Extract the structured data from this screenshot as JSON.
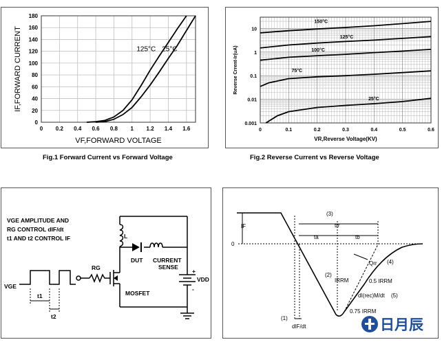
{
  "chart_data": [
    {
      "type": "line",
      "title": "",
      "xlabel": "VF,FORWARD VOLTAGE",
      "ylabel": "IF,FORWARD CURRENT",
      "xlim": [
        0,
        1.7
      ],
      "ylim": [
        0,
        180
      ],
      "x_ticks": [
        "0",
        "0.2",
        "0.4",
        "0.6",
        "0.8",
        "1",
        "1.2",
        "1.4",
        "1.6"
      ],
      "y_ticks": [
        "0",
        "20",
        "40",
        "60",
        "80",
        "100",
        "120",
        "140",
        "160",
        "180"
      ],
      "grid": true,
      "series": [
        {
          "name": "125°C",
          "points": [
            [
              0.5,
              0
            ],
            [
              0.6,
              1
            ],
            [
              0.7,
              3
            ],
            [
              0.8,
              9
            ],
            [
              0.9,
              20
            ],
            [
              1.0,
              38
            ],
            [
              1.1,
              62
            ],
            [
              1.2,
              88
            ],
            [
              1.3,
              112
            ],
            [
              1.4,
              135
            ],
            [
              1.5,
              158
            ],
            [
              1.6,
              180
            ]
          ]
        },
        {
          "name": "25°C",
          "points": [
            [
              0.6,
              0
            ],
            [
              0.7,
              1
            ],
            [
              0.8,
              5
            ],
            [
              0.9,
              13
            ],
            [
              1.0,
              25
            ],
            [
              1.1,
              43
            ],
            [
              1.2,
              63
            ],
            [
              1.3,
              85
            ],
            [
              1.4,
              108
            ],
            [
              1.5,
              130
            ],
            [
              1.6,
              155
            ],
            [
              1.7,
              180
            ]
          ]
        }
      ],
      "caption": "Fig.1    Forward Current  vs Forward Voltage"
    },
    {
      "type": "line",
      "title": "",
      "xlabel": "VR,Reverse Voltage(KV)",
      "ylabel": "Reverse Crrent-Ir(uA)",
      "xlim": [
        0,
        0.6
      ],
      "ylim": [
        0.001,
        30
      ],
      "yscale": "log",
      "x_ticks": [
        "0",
        "0.1",
        "0.2",
        "0.3",
        "0.4",
        "0.5",
        "0.6"
      ],
      "y_ticks": [
        "0.001",
        "0.01",
        "0.1",
        "1",
        "10"
      ],
      "grid": true,
      "series": [
        {
          "name": "150°C",
          "points": [
            [
              0.0,
              6.5
            ],
            [
              0.1,
              8
            ],
            [
              0.2,
              9.5
            ],
            [
              0.3,
              11
            ],
            [
              0.4,
              13
            ],
            [
              0.5,
              16
            ],
            [
              0.6,
              20
            ]
          ]
        },
        {
          "name": "125°C",
          "points": [
            [
              0.0,
              1.5
            ],
            [
              0.1,
              2
            ],
            [
              0.2,
              2.4
            ],
            [
              0.3,
              2.8
            ],
            [
              0.4,
              3.2
            ],
            [
              0.5,
              3.8
            ],
            [
              0.6,
              4.5
            ]
          ]
        },
        {
          "name": "100°C",
          "points": [
            [
              0.0,
              0.45
            ],
            [
              0.1,
              0.6
            ],
            [
              0.2,
              0.7
            ],
            [
              0.3,
              0.8
            ],
            [
              0.4,
              0.95
            ],
            [
              0.5,
              1.1
            ],
            [
              0.6,
              1.3
            ]
          ]
        },
        {
          "name": "75°C",
          "points": [
            [
              0.0,
              0.035
            ],
            [
              0.03,
              0.05
            ],
            [
              0.1,
              0.075
            ],
            [
              0.2,
              0.09
            ],
            [
              0.3,
              0.1
            ],
            [
              0.4,
              0.115
            ],
            [
              0.5,
              0.135
            ],
            [
              0.6,
              0.16
            ]
          ]
        },
        {
          "name": "25°C",
          "points": [
            [
              0.02,
              0.001
            ],
            [
              0.06,
              0.002
            ],
            [
              0.1,
              0.003
            ],
            [
              0.2,
              0.0045
            ],
            [
              0.3,
              0.0055
            ],
            [
              0.4,
              0.0065
            ],
            [
              0.5,
              0.008
            ],
            [
              0.6,
              0.011
            ]
          ]
        }
      ],
      "caption": "Fig.2     Reverse Current  vs Reverse Voltage"
    }
  ],
  "circuit": {
    "text_line1": "VGE AMPLITUDE AND",
    "text_line2": "RG CONTROL dIF/dt",
    "text_line3": "t1 AND t2 CONTROL IF",
    "vge": "VGE",
    "rg": "RG",
    "inductor": "L",
    "dut": "DUT",
    "current": "CURRENT",
    "sense": "SENSE",
    "mosfet": "MOSFET",
    "vdd": "VDD",
    "plus": "+",
    "minus": "-",
    "t1": "t1",
    "t2": "t2"
  },
  "waveform": {
    "if": "IF",
    "zero": "0",
    "n3": "(3)",
    "trr": "trr",
    "ta": "ta",
    "tb": "tb",
    "n2": "(2)",
    "irrm": "IRRM",
    "qrr": "Qrr",
    "n4": "(4)",
    "half_irrm": "0.5 IRRM",
    "di_rec": "dI(rec)M/dt",
    "n5": "(5)",
    "quarter": "0.75 IRRM",
    "n1": "(1)",
    "dif_dt": "dIF/dt"
  },
  "logo": {
    "text": "日月辰"
  }
}
